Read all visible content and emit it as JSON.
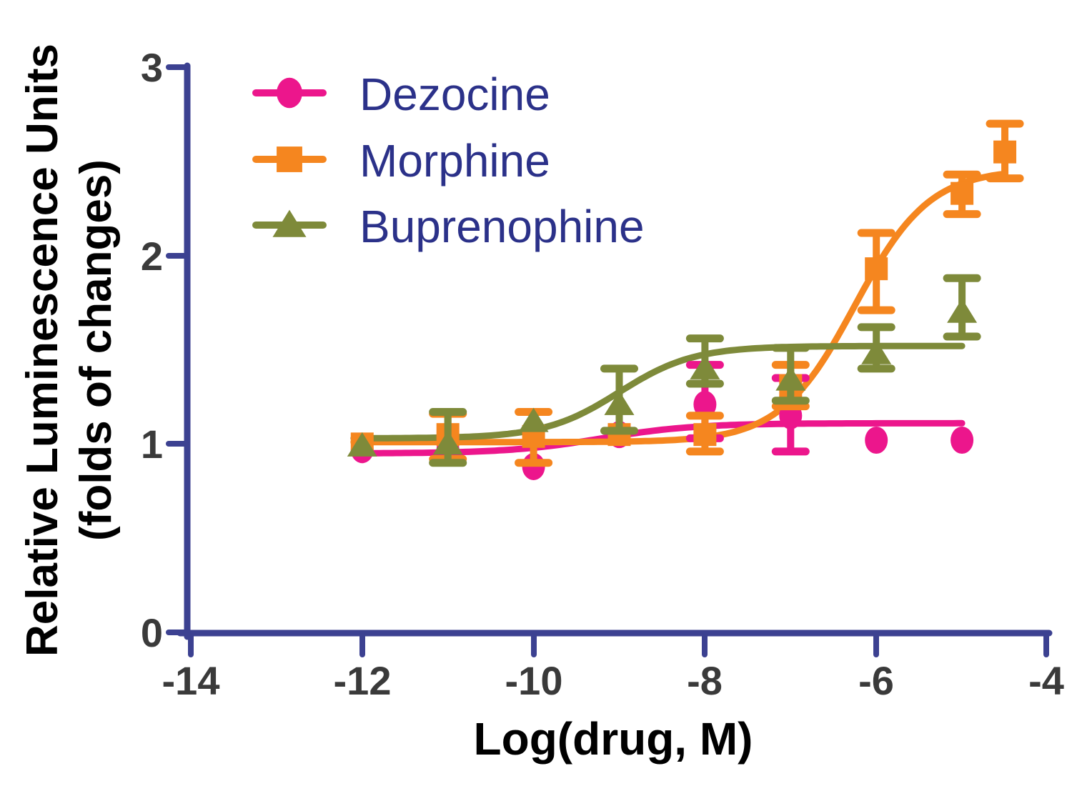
{
  "chart_data": {
    "type": "line",
    "title": "",
    "xlabel": "Log(drug, M)",
    "ylabel_line1": "Relative Luminescence Units",
    "ylabel_line2": "(folds of changes)",
    "x_axis": {
      "min": -14,
      "max": -4,
      "ticks": [
        -14,
        -12,
        -10,
        -8,
        -6,
        -4
      ]
    },
    "y_axis": {
      "min": 0,
      "max": 3,
      "ticks": [
        0,
        1,
        2,
        3
      ]
    },
    "x_tick_labels": [
      "-14",
      "-12",
      "-10",
      "-8",
      "-6",
      "-4"
    ],
    "y_tick_labels": [
      "0",
      "1",
      "2",
      "3"
    ],
    "grid": false,
    "legend_position": "top-left-inside",
    "axis_color": "#3C4191",
    "tick_label_color": "#3A3A3A",
    "legend_text_color": "#2B3189",
    "series": [
      {
        "name": "Dezocine",
        "color": "#EC168C",
        "marker": "circle",
        "points": [
          {
            "x": -12,
            "y": 0.97
          },
          {
            "x": -11,
            "y": 0.97
          },
          {
            "x": -10,
            "y": 0.88
          },
          {
            "x": -9,
            "y": 1.05
          },
          {
            "x": -8,
            "y": 1.21,
            "err_lo": 1.03,
            "err_hi": 1.42
          },
          {
            "x": -7,
            "y": 1.15,
            "err_lo": 0.96,
            "err_hi": 1.35
          },
          {
            "x": -6,
            "y": 1.02
          },
          {
            "x": -5,
            "y": 1.02
          }
        ],
        "fit": {
          "bottom": 0.95,
          "top": 1.11,
          "logec50": -9.2,
          "hill": 0.8,
          "x_start": -12.1,
          "x_end": -5.0
        }
      },
      {
        "name": "Morphine",
        "color": "#F5861F",
        "marker": "square",
        "points": [
          {
            "x": -12,
            "y": 1.0
          },
          {
            "x": -11,
            "y": 1.05,
            "err_lo": 0.92,
            "err_hi": 1.16
          },
          {
            "x": -10,
            "y": 1.04,
            "err_lo": 0.9,
            "err_hi": 1.17
          },
          {
            "x": -9,
            "y": 1.05
          },
          {
            "x": -8,
            "y": 1.05,
            "err_lo": 0.96,
            "err_hi": 1.15
          },
          {
            "x": -7,
            "y": 1.31,
            "err_lo": 1.2,
            "err_hi": 1.42
          },
          {
            "x": -6,
            "y": 1.93,
            "err_lo": 1.71,
            "err_hi": 2.12
          },
          {
            "x": -5,
            "y": 2.33,
            "err_lo": 2.22,
            "err_hi": 2.43
          },
          {
            "x": -4.5,
            "y": 2.55,
            "err_lo": 2.41,
            "err_hi": 2.7
          }
        ],
        "fit": {
          "bottom": 1.01,
          "top": 2.46,
          "logec50": -6.25,
          "hill": 1.0,
          "x_start": -12.1,
          "x_end": -4.55
        }
      },
      {
        "name": "Buprenophine",
        "color": "#7E8A3A",
        "marker": "triangle",
        "points": [
          {
            "x": -12,
            "y": 0.99
          },
          {
            "x": -11,
            "y": 1.0,
            "err_lo": 0.9,
            "err_hi": 1.17
          },
          {
            "x": -10,
            "y": 1.12
          },
          {
            "x": -9,
            "y": 1.21,
            "err_lo": 1.07,
            "err_hi": 1.4
          },
          {
            "x": -8,
            "y": 1.4,
            "err_lo": 1.32,
            "err_hi": 1.56
          },
          {
            "x": -7,
            "y": 1.34,
            "err_lo": 1.23,
            "err_hi": 1.51
          },
          {
            "x": -6,
            "y": 1.48,
            "err_lo": 1.4,
            "err_hi": 1.62
          },
          {
            "x": -5,
            "y": 1.7,
            "err_lo": 1.57,
            "err_hi": 1.88
          }
        ],
        "fit": {
          "bottom": 1.03,
          "top": 1.52,
          "logec50": -9.0,
          "hill": 1.0,
          "x_start": -12.1,
          "x_end": -5.0
        }
      }
    ]
  }
}
